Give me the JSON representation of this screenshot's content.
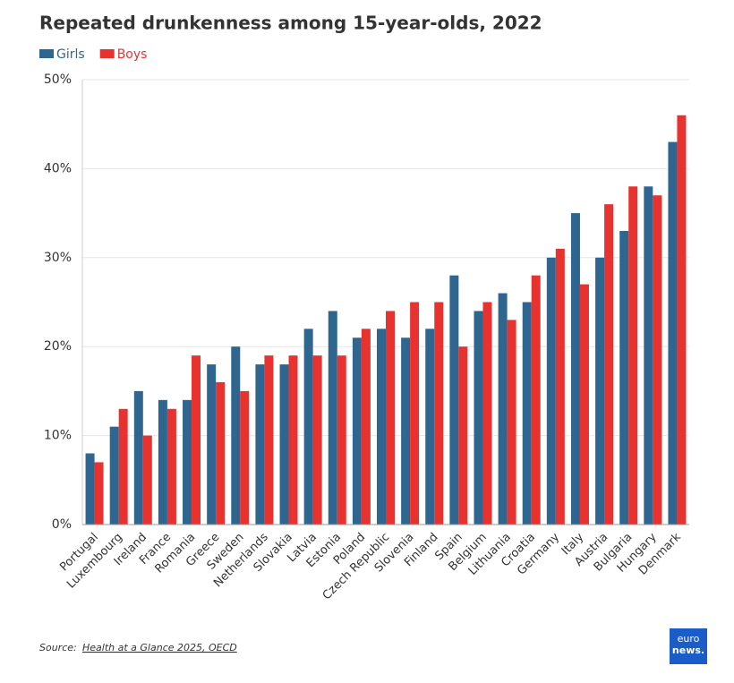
{
  "chart_data": {
    "type": "grouped_bar",
    "title": "Repeated drunkenness among 15-year-olds, 2022",
    "categories": [
      "Portugal",
      "Luxembourg",
      "Ireland",
      "France",
      "Romania",
      "Greece",
      "Sweden",
      "Netherlands",
      "Slovakia",
      "Latvia",
      "Estonia",
      "Poland",
      "Czech Republic",
      "Slovenia",
      "Finland",
      "Spain",
      "Belgium",
      "Lithuania",
      "Croatia",
      "Germany",
      "Italy",
      "Austria",
      "Bulgaria",
      "Hungary",
      "Denmark"
    ],
    "series": [
      {
        "name": "Girls",
        "color": "#2f6690",
        "values": [
          8,
          11,
          15,
          14,
          14,
          18,
          20,
          18,
          18,
          22,
          24,
          21,
          22,
          21,
          22,
          28,
          24,
          26,
          25,
          30,
          35,
          30,
          33,
          38,
          43
        ]
      },
      {
        "name": "Boys",
        "color": "#e8322f",
        "values": [
          7,
          13,
          10,
          13,
          19,
          16,
          15,
          19,
          19,
          19,
          19,
          22,
          24,
          25,
          25,
          20,
          25,
          23,
          28,
          31,
          27,
          36,
          38,
          37,
          46
        ]
      }
    ],
    "ylim": [
      0,
      50
    ],
    "yticks": [
      {
        "value": 0,
        "label": "0%"
      },
      {
        "value": 10,
        "label": "10%"
      },
      {
        "value": 20,
        "label": "20%"
      },
      {
        "value": 30,
        "label": "30%"
      },
      {
        "value": 40,
        "label": "40%"
      },
      {
        "value": 50,
        "label": "50%"
      }
    ],
    "grid": true,
    "legend": "top-left",
    "source_label": "Source:",
    "source_link": "Health at a Glance 2025, OECD",
    "logo": [
      "euro",
      "news."
    ]
  }
}
